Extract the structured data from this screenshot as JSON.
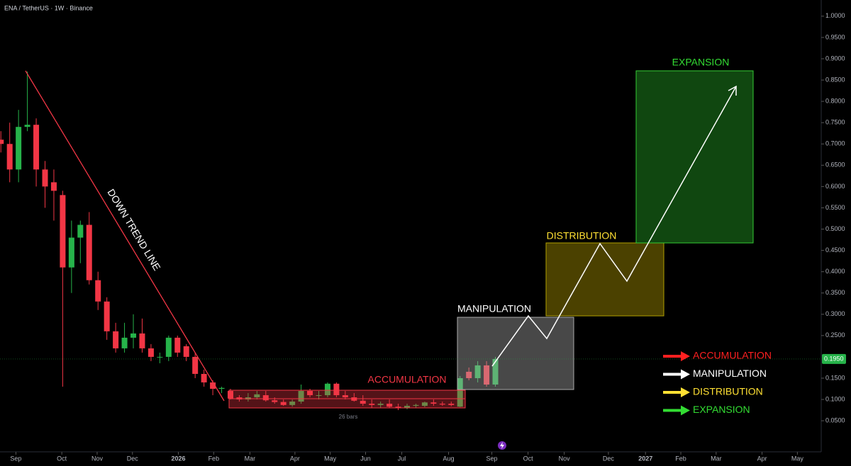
{
  "chart_data": {
    "type": "candlestick",
    "title": "ENA / TetherUS · 1W · Binance",
    "up_color": "#26b34a",
    "down_color": "#f23645",
    "x": [
      0,
      1,
      2,
      3,
      4,
      5,
      6,
      7,
      8,
      9,
      10,
      11,
      12,
      13,
      14,
      15,
      16,
      17,
      18,
      19,
      20,
      21,
      22,
      23,
      24,
      25,
      26,
      27,
      28,
      29,
      30,
      31,
      32,
      33,
      34,
      35,
      36,
      37,
      38,
      39,
      40,
      41,
      42,
      43,
      44,
      45,
      46,
      47,
      48,
      49,
      50,
      51,
      52,
      53,
      54,
      55,
      56
    ],
    "open": [
      0.71,
      0.7,
      0.64,
      0.74,
      0.745,
      0.64,
      0.61,
      0.58,
      0.41,
      0.48,
      0.51,
      0.38,
      0.33,
      0.26,
      0.22,
      0.245,
      0.255,
      0.22,
      0.2,
      0.2,
      0.245,
      0.225,
      0.2,
      0.16,
      0.14,
      0.125,
      0.12,
      0.105,
      0.1,
      0.105,
      0.11,
      0.098,
      0.094,
      0.087,
      0.095,
      0.12,
      0.11,
      0.11,
      0.137,
      0.11,
      0.105,
      0.097,
      0.09,
      0.087,
      0.09,
      0.083,
      0.08,
      0.085,
      0.085,
      0.093,
      0.09,
      0.09,
      0.083,
      0.165,
      0.15,
      0.18,
      0.135
    ],
    "high": [
      0.73,
      0.75,
      0.78,
      0.87,
      0.76,
      0.66,
      0.64,
      0.59,
      0.52,
      0.52,
      0.54,
      0.4,
      0.34,
      0.28,
      0.28,
      0.3,
      0.29,
      0.23,
      0.21,
      0.25,
      0.25,
      0.23,
      0.21,
      0.17,
      0.145,
      0.13,
      0.125,
      0.11,
      0.115,
      0.12,
      0.12,
      0.105,
      0.1,
      0.1,
      0.135,
      0.125,
      0.12,
      0.14,
      0.14,
      0.12,
      0.115,
      0.11,
      0.1,
      0.095,
      0.1,
      0.09,
      0.09,
      0.09,
      0.095,
      0.1,
      0.095,
      0.095,
      0.155,
      0.175,
      0.19,
      0.19,
      0.2
    ],
    "low": [
      0.68,
      0.61,
      0.61,
      0.73,
      0.6,
      0.55,
      0.52,
      0.13,
      0.35,
      0.42,
      0.37,
      0.31,
      0.24,
      0.21,
      0.21,
      0.22,
      0.21,
      0.19,
      0.185,
      0.19,
      0.2,
      0.19,
      0.15,
      0.13,
      0.11,
      0.115,
      0.1,
      0.095,
      0.095,
      0.1,
      0.095,
      0.09,
      0.085,
      0.083,
      0.09,
      0.105,
      0.1,
      0.105,
      0.105,
      0.1,
      0.095,
      0.085,
      0.08,
      0.08,
      0.08,
      0.075,
      0.077,
      0.08,
      0.082,
      0.085,
      0.085,
      0.084,
      0.082,
      0.145,
      0.14,
      0.13,
      0.13
    ],
    "close": [
      0.7,
      0.64,
      0.74,
      0.745,
      0.64,
      0.6,
      0.59,
      0.41,
      0.48,
      0.51,
      0.38,
      0.33,
      0.26,
      0.22,
      0.245,
      0.255,
      0.22,
      0.2,
      0.2,
      0.245,
      0.21,
      0.2,
      0.16,
      0.14,
      0.125,
      0.127,
      0.102,
      0.1,
      0.105,
      0.112,
      0.098,
      0.094,
      0.087,
      0.095,
      0.12,
      0.11,
      0.11,
      0.137,
      0.11,
      0.105,
      0.097,
      0.09,
      0.087,
      0.09,
      0.083,
      0.08,
      0.085,
      0.087,
      0.093,
      0.09,
      0.088,
      0.087,
      0.15,
      0.15,
      0.18,
      0.135,
      0.195
    ],
    "xlim": [
      -0.1,
      92.9
    ],
    "xticks": [
      {
        "value": 1.7,
        "label": "Sep"
      },
      {
        "value": 6.9,
        "label": "Oct"
      },
      {
        "value": 10.9,
        "label": "Nov"
      },
      {
        "value": 14.9,
        "label": "Dec"
      },
      {
        "value": 20.1,
        "label": "2026"
      },
      {
        "value": 24.1,
        "label": "Feb"
      },
      {
        "value": 28.2,
        "label": "Mar"
      },
      {
        "value": 33.3,
        "label": "Apr"
      },
      {
        "value": 37.3,
        "label": "May"
      },
      {
        "value": 41.3,
        "label": "Jun"
      },
      {
        "value": 45.4,
        "label": "Jul"
      },
      {
        "value": 50.7,
        "label": "Aug"
      },
      {
        "value": 55.6,
        "label": "Sep"
      },
      {
        "value": 59.7,
        "label": "Oct"
      },
      {
        "value": 63.8,
        "label": "Nov"
      },
      {
        "value": 68.8,
        "label": "Dec"
      },
      {
        "value": 73,
        "label": "2027"
      },
      {
        "value": 77,
        "label": "Feb"
      },
      {
        "value": 81,
        "label": "Mar"
      },
      {
        "value": 86.2,
        "label": "Apr"
      },
      {
        "value": 90.2,
        "label": "May"
      }
    ],
    "ylim": [
      -0.023,
      1.038
    ],
    "yticks": [
      {
        "value": 0.05,
        "label": "0.0500"
      },
      {
        "value": 0.1,
        "label": "0.1000"
      },
      {
        "value": 0.15,
        "label": "0.1500"
      },
      {
        "value": 0.25,
        "label": "0.2500"
      },
      {
        "value": 0.3,
        "label": "0.3000"
      },
      {
        "value": 0.35,
        "label": "0.3500"
      },
      {
        "value": 0.4,
        "label": "0.4000"
      },
      {
        "value": 0.45,
        "label": "0.4500"
      },
      {
        "value": 0.5,
        "label": "0.5000"
      },
      {
        "value": 0.55,
        "label": "0.5500"
      },
      {
        "value": 0.6,
        "label": "0.6000"
      },
      {
        "value": 0.65,
        "label": "0.6500"
      },
      {
        "value": 0.7,
        "label": "0.7000"
      },
      {
        "value": 0.75,
        "label": "0.7500"
      },
      {
        "value": 0.8,
        "label": "0.8000"
      },
      {
        "value": 0.85,
        "label": "0.8500"
      },
      {
        "value": 0.9,
        "label": "0.9000"
      },
      {
        "value": 0.95,
        "label": "0.9500"
      },
      {
        "value": 1.0,
        "label": "1.0000"
      }
    ],
    "last_price": {
      "value": 0.195,
      "label": "0.1950"
    },
    "annotations": {
      "trend_line": "DOWN TREND LINE",
      "accumulation": "ACCUMULATION",
      "manipulation": "MANIPULATION",
      "distribution": "DISTRIBUTION",
      "expansion": "EXPANSION",
      "bars": "26 bars"
    },
    "legend": [
      {
        "name": "ACCUMULATION",
        "color": "#ff2020"
      },
      {
        "name": "MANIPULATION",
        "color": "#ffffff"
      },
      {
        "name": "DISTRIBUTION",
        "color": "#ffe033"
      },
      {
        "name": "EXPANSION",
        "color": "#33dd33"
      }
    ]
  }
}
